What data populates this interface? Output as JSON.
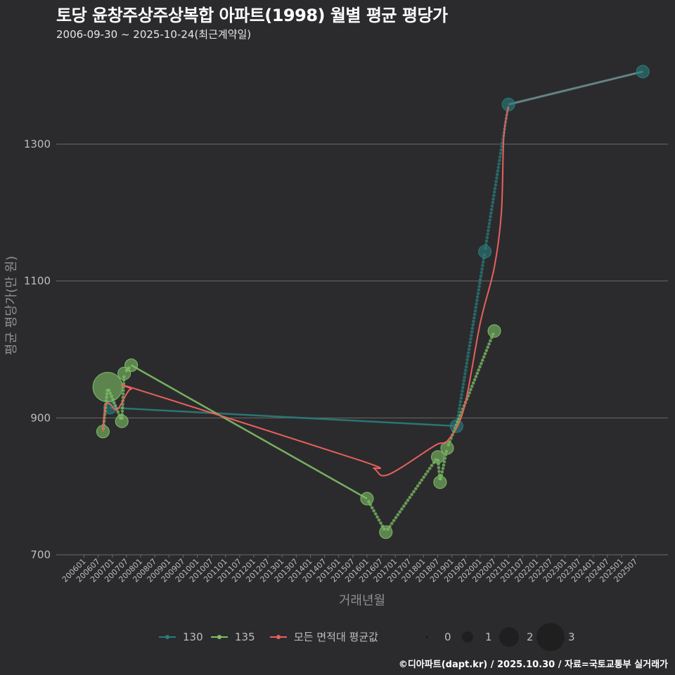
{
  "header": {
    "title": "토당 윤창주상주상복합 아파트(1998) 월별 평균 평당가",
    "subtitle": "2006-09-30 ~ 2025-10-24(최근계약일)"
  },
  "credit": "©디아파트(dapt.kr) / 2025.10.30 / 자료=국토교통부 실거래가",
  "colors": {
    "s130": "#2a7d7b",
    "s135": "#7fbf66",
    "avg": "#e8605c",
    "grid": "#6a6a6a",
    "bubble": "#1f1f1f"
  },
  "chart_data": {
    "type": "line",
    "xlabel": "거래년월",
    "ylabel": "평균 평당가(만 원)",
    "ylim": [
      700,
      1410
    ],
    "yticks": [
      700,
      900,
      1100,
      1300
    ],
    "xticks": [
      "200601",
      "200607",
      "200701",
      "200707",
      "200801",
      "200807",
      "200901",
      "200907",
      "201001",
      "201007",
      "201101",
      "201107",
      "201201",
      "201207",
      "201301",
      "201307",
      "201401",
      "201407",
      "201501",
      "201507",
      "201601",
      "201607",
      "201701",
      "201707",
      "201801",
      "201807",
      "201901",
      "201907",
      "202001",
      "202007",
      "202101",
      "202107",
      "202201",
      "202207",
      "202301",
      "202307",
      "202401",
      "202407",
      "202501",
      "202507"
    ],
    "series": [
      {
        "name": "130",
        "points": [
          {
            "date": "2006-12",
            "value": 915,
            "count": 1
          },
          {
            "date": "2019-03",
            "value": 888,
            "count": 1
          },
          {
            "date": "2020-03",
            "value": 1143,
            "count": 1
          },
          {
            "date": "2021-01",
            "value": 1358,
            "count": 1
          },
          {
            "date": "2025-10",
            "value": 1406,
            "count": 1
          }
        ]
      },
      {
        "name": "135",
        "points": [
          {
            "date": "2006-09",
            "value": 880,
            "count": 1
          },
          {
            "date": "2006-11",
            "value": 945,
            "count": 3
          },
          {
            "date": "2007-05",
            "value": 895,
            "count": 1
          },
          {
            "date": "2007-06",
            "value": 965,
            "count": 1
          },
          {
            "date": "2007-09",
            "value": 977,
            "count": 1
          },
          {
            "date": "2016-01",
            "value": 782,
            "count": 1
          },
          {
            "date": "2016-09",
            "value": 733,
            "count": 1
          },
          {
            "date": "2018-07",
            "value": 843,
            "count": 1
          },
          {
            "date": "2018-08",
            "value": 806,
            "count": 1
          },
          {
            "date": "2018-11",
            "value": 856,
            "count": 1
          },
          {
            "date": "2020-07",
            "value": 1027,
            "count": 1
          }
        ]
      },
      {
        "name": "모든 면적대 평균값",
        "points": [
          {
            "date": "2006-09",
            "value": 880
          },
          {
            "date": "2006-10",
            "value": 918
          },
          {
            "date": "2006-12",
            "value": 920
          },
          {
            "date": "2007-03",
            "value": 912
          },
          {
            "date": "2007-07",
            "value": 935
          },
          {
            "date": "2007-09",
            "value": 942
          },
          {
            "date": "2008-01",
            "value": 940
          },
          {
            "date": "2015-10",
            "value": 838
          },
          {
            "date": "2016-04",
            "value": 826
          },
          {
            "date": "2016-10",
            "value": 817
          },
          {
            "date": "2018-06",
            "value": 860
          },
          {
            "date": "2018-11",
            "value": 866
          },
          {
            "date": "2019-06",
            "value": 912
          },
          {
            "date": "2020-01",
            "value": 1038
          },
          {
            "date": "2020-07",
            "value": 1120
          },
          {
            "date": "2020-10",
            "value": 1200
          },
          {
            "date": "2020-11",
            "value": 1310
          },
          {
            "date": "2021-01",
            "value": 1355
          }
        ]
      }
    ],
    "legend": {
      "series_labels": [
        "130",
        "135",
        "모든 면적대 평균값"
      ],
      "size_labels": [
        "0",
        "1",
        "2",
        "3"
      ]
    }
  }
}
